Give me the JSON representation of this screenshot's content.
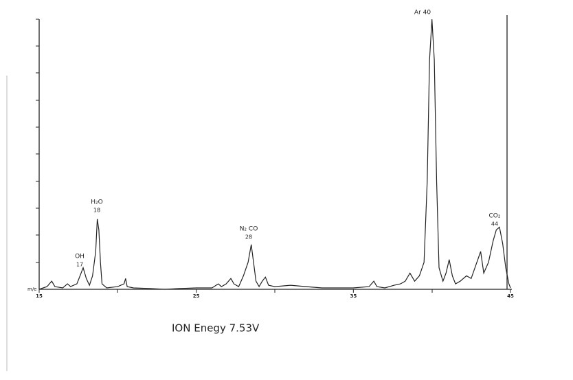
{
  "chart_data": {
    "type": "line",
    "x_axis_label": "m/e",
    "caption": "ION Enegy 7.53V",
    "annotations": [
      {
        "label": "OH",
        "mass": "17"
      },
      {
        "label": "H₂O",
        "mass": "18"
      },
      {
        "label": "N₂ CO",
        "mass": "28"
      },
      {
        "label": "Ar 40"
      },
      {
        "label": "CO₂",
        "mass": "44"
      }
    ],
    "x": [
      15.0,
      15.5,
      15.8,
      16.0,
      16.5,
      16.8,
      17.0,
      17.4,
      17.6,
      17.8,
      18.0,
      18.2,
      18.4,
      18.6,
      18.7,
      18.8,
      18.9,
      19.0,
      19.3,
      20.0,
      20.4,
      20.5,
      20.6,
      21.0,
      22.0,
      23.0,
      24.0,
      25.0,
      26.0,
      26.4,
      26.6,
      26.9,
      27.2,
      27.4,
      27.7,
      28.0,
      28.3,
      28.5,
      28.6,
      28.8,
      29.0,
      29.2,
      29.4,
      29.6,
      30.0,
      31.0,
      32.0,
      33.0,
      34.0,
      35.0,
      36.0,
      36.3,
      36.5,
      37.0,
      37.6,
      38.0,
      38.3,
      38.6,
      38.9,
      39.2,
      39.5,
      39.7,
      39.85,
      40.0,
      40.15,
      40.3,
      40.45,
      40.7,
      40.9,
      41.1,
      41.3,
      41.5,
      41.8,
      42.2,
      42.5,
      42.8,
      43.1,
      43.3,
      43.6,
      43.9,
      44.1,
      44.3,
      44.5,
      44.7,
      44.9,
      45.0
    ],
    "values": [
      0,
      1,
      3,
      1,
      0.5,
      2,
      1,
      2,
      5,
      8,
      4,
      1.5,
      5,
      14,
      26,
      22,
      10,
      2,
      0.5,
      1,
      2,
      4,
      1,
      0.5,
      0.3,
      0,
      0.3,
      0.5,
      0.5,
      2,
      1,
      2,
      4,
      2,
      1,
      5,
      10,
      16.6,
      12,
      3,
      1,
      3,
      4.5,
      1.5,
      1,
      1.5,
      1,
      0.5,
      0.5,
      0.5,
      1,
      3,
      1,
      0.5,
      1.5,
      2,
      3,
      6,
      3,
      5,
      10,
      40,
      85,
      100,
      85,
      40,
      8,
      3,
      6,
      11,
      5,
      2,
      3,
      5,
      4,
      9,
      14,
      6,
      10,
      18,
      22,
      23,
      17,
      8,
      2,
      0.5
    ],
    "color": "#222222",
    "xlim": [
      15,
      45
    ],
    "ylim": [
      0,
      100
    ],
    "xticks": [
      15,
      25,
      35,
      45
    ]
  }
}
